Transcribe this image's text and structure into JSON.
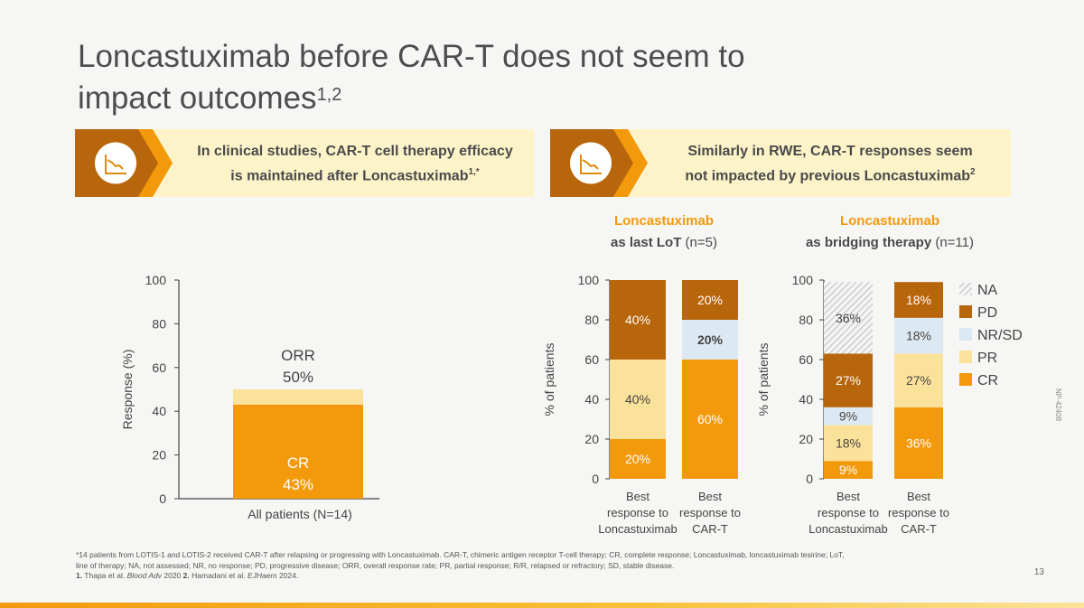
{
  "title": {
    "line1": "Loncastuximab before CAR-T does not seem to",
    "line2": "impact outcomes",
    "sup": "1,2"
  },
  "banners": [
    {
      "line1": "In clinical studies, CAR-T cell therapy efficacy",
      "line2": "is maintained after Loncastuximab",
      "sup": "1,*",
      "icon": "chart-icon"
    },
    {
      "line1": "Similarly in RWE, CAR-T responses seem",
      "line2": "not impacted by previous Loncastuximab",
      "sup": "2",
      "icon": "chart-icon"
    }
  ],
  "colors": {
    "CR": "#f39a0c",
    "PR": "#fbe29a",
    "NR_SD": "#dde9f2",
    "PD": "#b8660c",
    "NA": "#d8d8d8",
    "ORR": "#fbe29a"
  },
  "chart_data": [
    {
      "type": "bar",
      "title": "",
      "ylabel": "Response (%)",
      "ylim": [
        0,
        100
      ],
      "yticks": [
        "0",
        "20",
        "40",
        "60",
        "80",
        "100"
      ],
      "categories": [
        "All patients (N=14)"
      ],
      "series": [
        {
          "name": "CR",
          "values": [
            43
          ],
          "label_top": "CR",
          "label_bottom": "43%"
        },
        {
          "name": "ORR",
          "values": [
            50
          ],
          "label_top": "ORR",
          "label_bottom": "50%"
        }
      ]
    },
    {
      "type": "bar",
      "stacked": true,
      "title_highlight": "Loncastuximab",
      "title_bold": "as last LoT",
      "title_n": " (n=5)",
      "ylabel": "% of patients",
      "ylim": [
        0,
        100
      ],
      "yticks": [
        "0",
        "20",
        "40",
        "60",
        "80",
        "100"
      ],
      "categories": [
        [
          "Best",
          "response to",
          "Loncastuximab"
        ],
        [
          "Best",
          "response to",
          "CAR-T"
        ]
      ],
      "series": [
        {
          "name": "CR",
          "values": [
            20,
            60
          ],
          "labels": [
            "20%",
            "60%"
          ]
        },
        {
          "name": "PR",
          "values": [
            40,
            0
          ],
          "labels": [
            "40%",
            ""
          ]
        },
        {
          "name": "NR/SD",
          "values": [
            0,
            20
          ],
          "labels": [
            "",
            "20%"
          ]
        },
        {
          "name": "PD",
          "values": [
            40,
            20
          ],
          "labels": [
            "40%",
            "20%"
          ]
        }
      ]
    },
    {
      "type": "bar",
      "stacked": true,
      "title_highlight": "Loncastuximab",
      "title_bold": "as bridging therapy",
      "title_n": " (n=11)",
      "ylabel": "% of patients",
      "ylim": [
        0,
        100
      ],
      "yticks": [
        "0",
        "20",
        "40",
        "60",
        "80",
        "100"
      ],
      "categories": [
        [
          "Best",
          "response to",
          "Loncastuximab"
        ],
        [
          "Best",
          "response to",
          "CAR-T"
        ]
      ],
      "series": [
        {
          "name": "CR",
          "values": [
            9,
            36
          ],
          "labels": [
            "9%",
            "36%"
          ]
        },
        {
          "name": "PR",
          "values": [
            18,
            27
          ],
          "labels": [
            "18%",
            "27%"
          ]
        },
        {
          "name": "NR/SD",
          "values": [
            9,
            18
          ],
          "labels": [
            "9%",
            "18%"
          ]
        },
        {
          "name": "PD",
          "values": [
            27,
            18
          ],
          "labels": [
            "27%",
            "18%"
          ]
        },
        {
          "name": "NA",
          "values": [
            36,
            0
          ],
          "labels": [
            "36%",
            ""
          ]
        }
      ],
      "legend": [
        "NA",
        "PD",
        "NR/SD",
        "PR",
        "CR"
      ]
    }
  ],
  "footnote": {
    "line1": "*14 patients from LOTIS-1 and LOTIS-2 received CAR-T after relapsing or progressing with Loncastuximab. CAR-T, chimeric antigen receptor T-cell therapy; CR, complete response; Loncastuximab, loncastuximab tesirine; LoT,",
    "line2": "line of therapy; NA, not assessed; NR, no response; PD, progressive disease; ORR, overall response rate; PR, partial response; R/R, relapsed or refractory; SD, stable disease.",
    "ref1_num": "1.",
    "ref1_text": " Thapa et al. ",
    "ref1_journal": "Blood Adv",
    "ref1_year": " 2020 ",
    "ref2_num": "2.",
    "ref2_text": " Hamadani et al. ",
    "ref2_journal": "EJHaem",
    "ref2_year": " 2024."
  },
  "page_number": "13",
  "side_code": "NP-42408"
}
